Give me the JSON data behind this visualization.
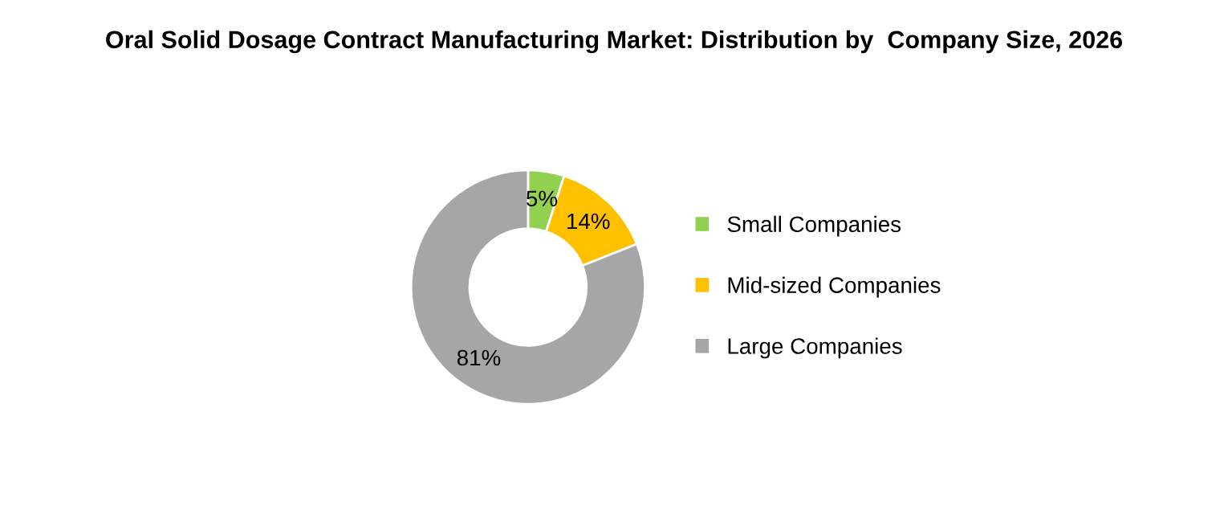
{
  "chart_data": {
    "type": "donut",
    "title": "Oral Solid Dosage Contract Manufacturing Market: Distribution by  Company Size, 2026",
    "categories": [
      "Small Companies",
      "Mid-sized Companies",
      "Large Companies"
    ],
    "values": [
      5,
      14,
      81
    ],
    "value_labels": [
      "5%",
      "14%",
      "81%"
    ],
    "colors": [
      "#92d050",
      "#ffc000",
      "#a6a6a6"
    ],
    "legend": "right"
  }
}
